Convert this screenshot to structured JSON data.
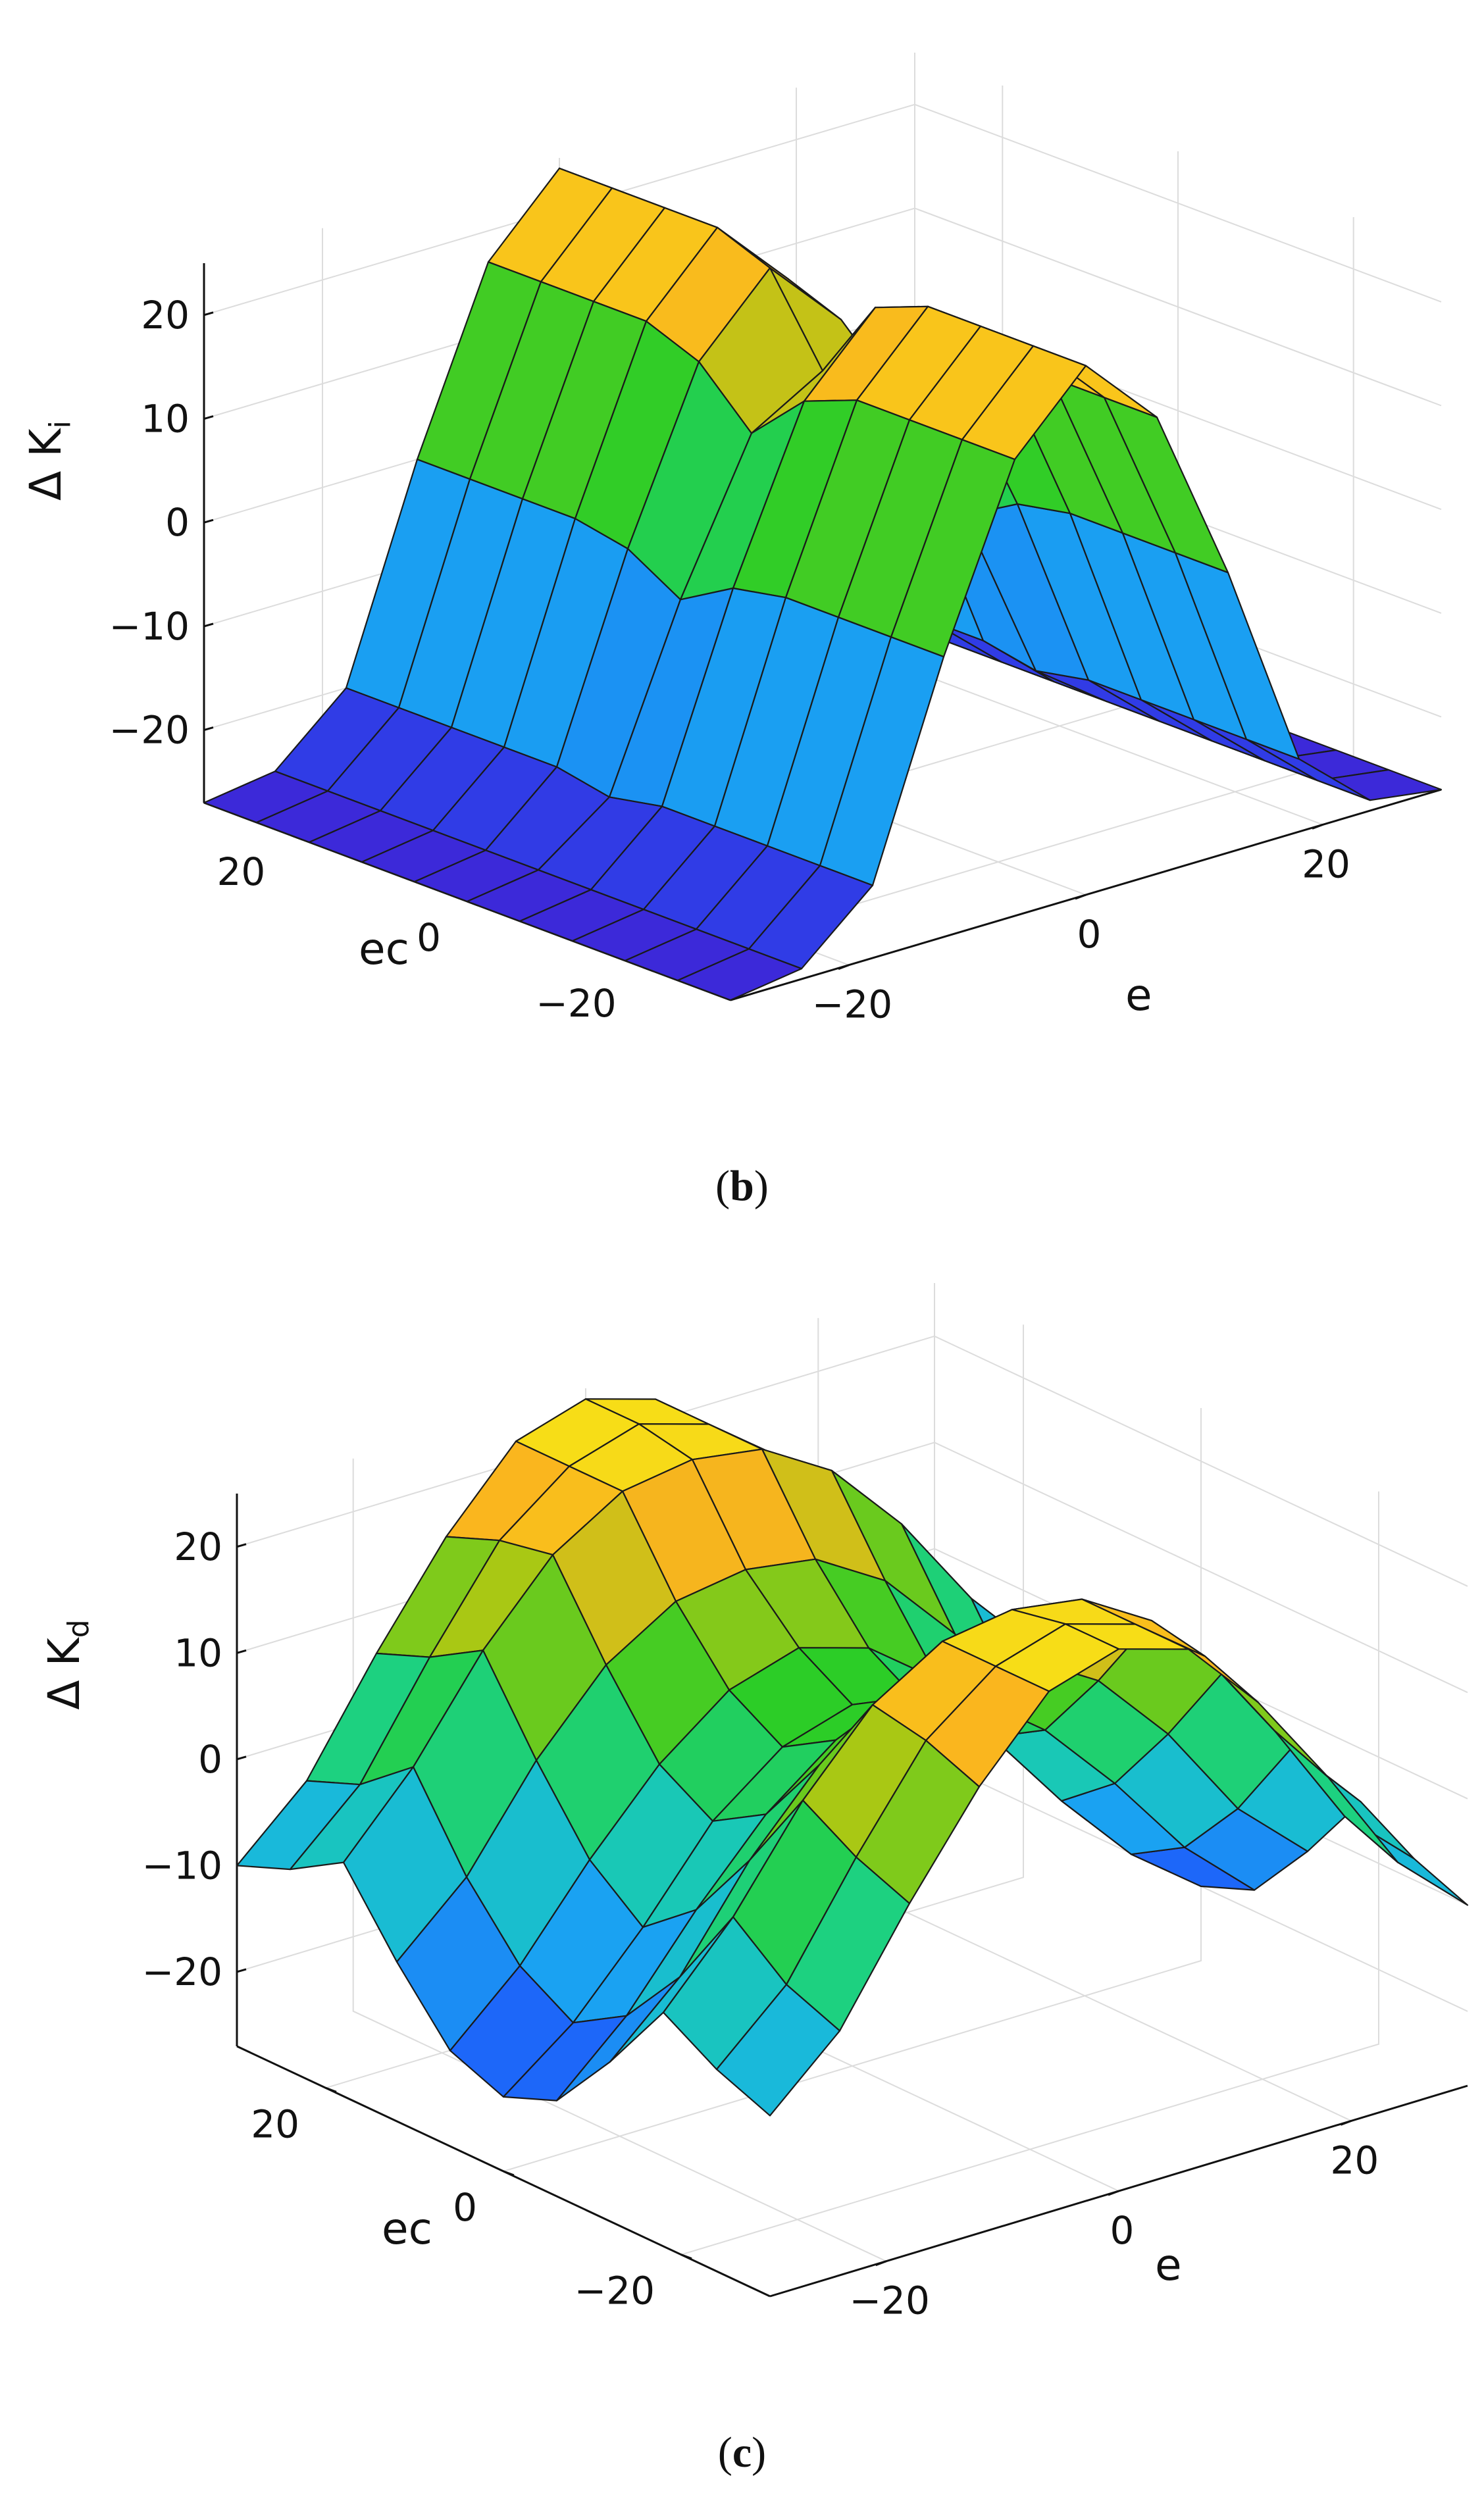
{
  "chart_data": [
    {
      "type": "surface",
      "panel_label": "b",
      "zlabel_main": "Δ K",
      "zlabel_sub": "i",
      "xlabel": "e",
      "ylabel": "ec",
      "x_ticks": [
        "−20",
        "0",
        "20"
      ],
      "y_ticks": [
        "20",
        "0",
        "−20"
      ],
      "z_ticks": [
        "20",
        "10",
        "0",
        "−10",
        "−20"
      ],
      "xlim": [
        -30,
        30
      ],
      "ylim": [
        -30,
        30
      ],
      "zlim": [
        -27,
        25
      ],
      "grid": true,
      "x": [
        -30,
        -24,
        -18,
        -12,
        -6,
        0,
        6,
        12,
        18,
        24,
        30
      ],
      "y": [
        -30,
        -24,
        -18,
        -12,
        -6,
        0,
        6,
        12,
        18,
        24,
        30
      ],
      "z": [
        [
          -27,
          -26,
          -20,
          0,
          17,
          24,
          17,
          0,
          -20,
          -26,
          -27
        ],
        [
          -27,
          -26,
          -20,
          0,
          17,
          24,
          17,
          0,
          -20,
          -26,
          -27
        ],
        [
          -27,
          -26,
          -20,
          0,
          17,
          24,
          17,
          0,
          -20,
          -26,
          -27
        ],
        [
          -27,
          -26,
          -20,
          0,
          17,
          24,
          17,
          0,
          -20,
          -26,
          -27
        ],
        [
          -27,
          -26,
          -20,
          -1,
          15,
          22,
          15,
          -1,
          -20,
          -26,
          -27
        ],
        [
          -27,
          -26,
          -21,
          -4,
          10,
          14,
          10,
          -4,
          -21,
          -26,
          -27
        ],
        [
          -27,
          -26,
          -20,
          -1,
          15,
          22,
          15,
          -1,
          -20,
          -26,
          -27
        ],
        [
          -27,
          -26,
          -20,
          0,
          17,
          24,
          17,
          0,
          -20,
          -26,
          -27
        ],
        [
          -27,
          -26,
          -20,
          0,
          17,
          24,
          17,
          0,
          -20,
          -26,
          -27
        ],
        [
          -27,
          -26,
          -20,
          0,
          17,
          24,
          17,
          0,
          -20,
          -26,
          -27
        ],
        [
          -27,
          -26,
          -20,
          0,
          17,
          24,
          17,
          0,
          -20,
          -26,
          -27
        ]
      ]
    },
    {
      "type": "surface",
      "panel_label": "c",
      "zlabel_main": "Δ K",
      "zlabel_sub": "d",
      "xlabel": "e",
      "ylabel": "ec",
      "x_ticks": [
        "−20",
        "0",
        "20"
      ],
      "y_ticks": [
        "20",
        "0",
        "−20"
      ],
      "z_ticks": [
        "20",
        "10",
        "0",
        "−10",
        "−20"
      ],
      "xlim": [
        -30,
        30
      ],
      "ylim": [
        -30,
        30
      ],
      "zlim": [
        -27,
        25
      ],
      "grid": true,
      "x": [
        -30,
        -24,
        -18,
        -12,
        -6,
        0,
        6,
        12,
        18,
        24,
        30
      ],
      "y": [
        -30,
        -24,
        -18,
        -12,
        -6,
        0,
        6,
        12,
        18,
        24,
        30
      ],
      "z": [
        [
          -10,
          -4,
          6,
          15,
          22,
          24,
          22,
          15,
          6,
          -4,
          -10
        ],
        [
          -8,
          -2,
          8,
          17,
          22,
          24,
          22,
          17,
          8,
          -2,
          -8
        ],
        [
          -5,
          2,
          11,
          18,
          22,
          23,
          22,
          18,
          11,
          2,
          -5
        ],
        [
          -12,
          -6,
          3,
          10,
          14,
          15,
          14,
          10,
          3,
          -6,
          -12
        ],
        [
          -18,
          -12,
          -4,
          3,
          8,
          10,
          8,
          3,
          -4,
          -12,
          -18
        ],
        [
          -20,
          -15,
          -8,
          0,
          5,
          7,
          5,
          0,
          -8,
          -15,
          -20
        ],
        [
          -18,
          -12,
          -4,
          3,
          8,
          10,
          8,
          3,
          -4,
          -12,
          -18
        ],
        [
          -12,
          -6,
          3,
          10,
          14,
          15,
          14,
          10,
          3,
          -6,
          -12
        ],
        [
          -5,
          2,
          11,
          18,
          22,
          23,
          22,
          18,
          11,
          2,
          -5
        ],
        [
          -8,
          -2,
          8,
          17,
          22,
          24,
          22,
          17,
          8,
          -2,
          -8
        ],
        [
          -10,
          -4,
          6,
          15,
          22,
          24,
          22,
          15,
          6,
          -4,
          -10
        ]
      ]
    }
  ]
}
